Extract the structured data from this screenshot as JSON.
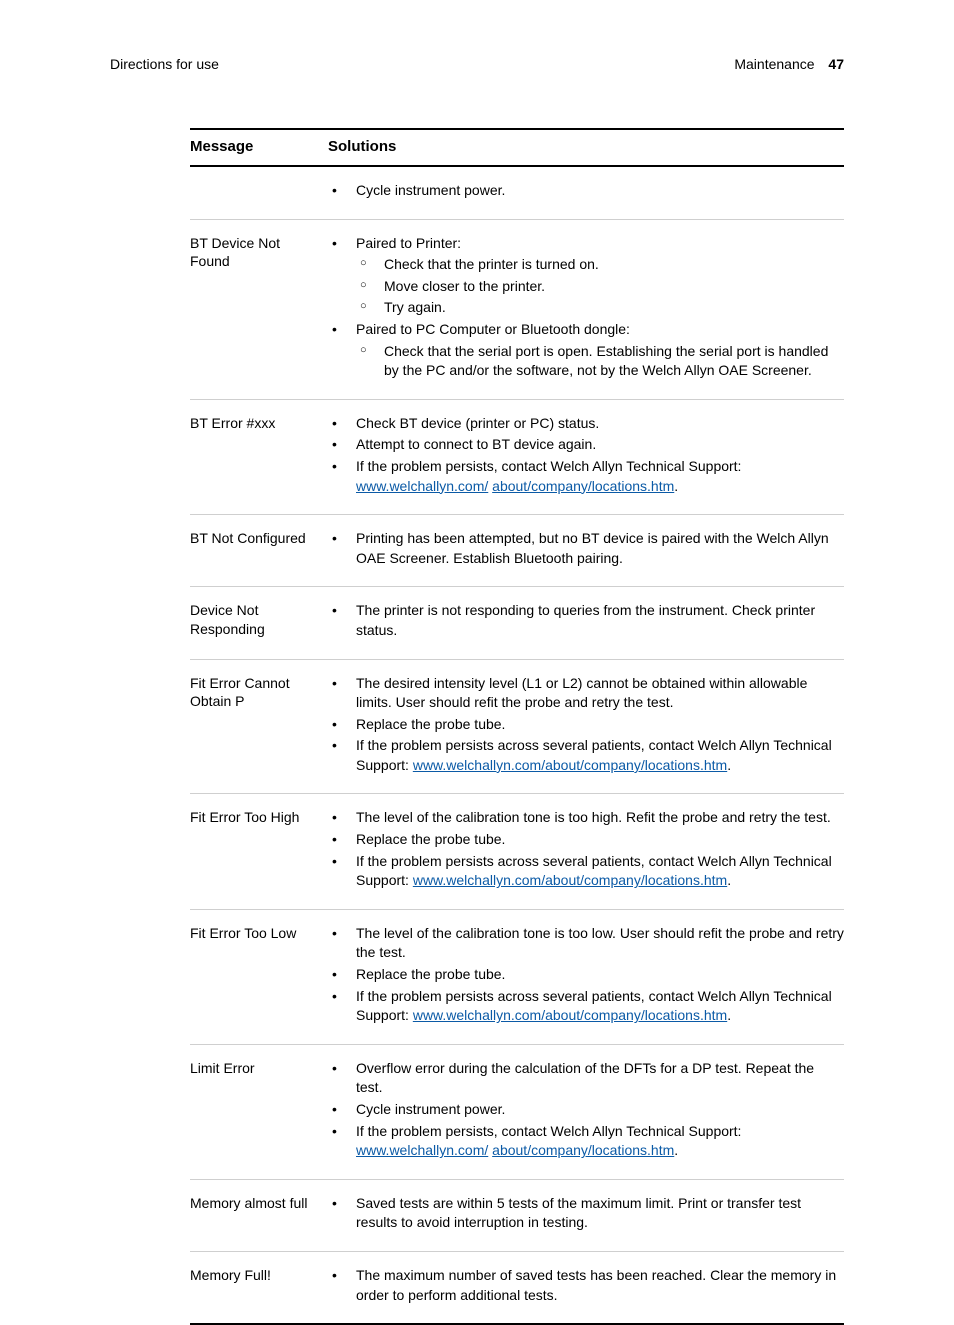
{
  "page": {
    "running_header_left": "Directions for use",
    "running_header_right_section": "Maintenance",
    "running_header_page_number": "47"
  },
  "table": {
    "headers": {
      "message": "Message",
      "solutions": "Solutions"
    },
    "link_url": "www.welchallyn.com/about/company/locations.htm",
    "link_url_split_a": "www.welchallyn.com/",
    "link_url_split_b": "about/company/locations.htm",
    "rows": [
      {
        "message": "",
        "items": [
          {
            "text": "Cycle instrument power."
          }
        ]
      },
      {
        "message": "BT Device Not Found",
        "items": [
          {
            "text": "Paired to Printer:",
            "sub": [
              "Check that the printer is turned on.",
              "Move closer to the printer.",
              "Try again."
            ]
          },
          {
            "text": "Paired to PC Computer or Bluetooth dongle:",
            "sub": [
              "Check that the serial port is open. Establishing the serial port is handled by the PC and/or the software, not by the Welch Allyn OAE Screener."
            ]
          }
        ]
      },
      {
        "message": "BT Error #xxx",
        "items": [
          {
            "text": "Check BT device (printer or PC) status."
          },
          {
            "text": "Attempt to connect to BT device again."
          },
          {
            "text_prefix": "If the problem persists, contact Welch Allyn Technical Support: ",
            "link_split": true
          }
        ]
      },
      {
        "message": "BT Not Configured",
        "items": [
          {
            "text": "Printing has been attempted, but no BT device is paired with the Welch Allyn OAE Screener. Establish Bluetooth pairing."
          }
        ]
      },
      {
        "message": "Device Not Responding",
        "items": [
          {
            "text": "The printer is not responding to queries from the instrument. Check printer status."
          }
        ]
      },
      {
        "message": "Fit Error Cannot Obtain P",
        "items": [
          {
            "text": "The desired intensity level (L1 or L2) cannot be obtained within allowable limits. User should refit the probe and retry the test."
          },
          {
            "text": "Replace the probe tube."
          },
          {
            "text_prefix": "If the problem persists across several patients, contact Welch Allyn Technical Support: ",
            "link_inline": true
          }
        ]
      },
      {
        "message": "Fit Error Too High",
        "items": [
          {
            "text": "The level of the calibration tone is too high. Refit the probe and retry the test."
          },
          {
            "text": "Replace the probe tube."
          },
          {
            "text_prefix": "If the problem persists across several patients, contact Welch Allyn Technical Support: ",
            "link_inline": true
          }
        ]
      },
      {
        "message": "Fit Error Too Low",
        "items": [
          {
            "text": "The level of the calibration tone is too low. User should refit the probe and retry the test."
          },
          {
            "text": "Replace the probe tube."
          },
          {
            "text_prefix": "If the problem persists across several patients, contact Welch Allyn Technical Support: ",
            "link_inline": true
          }
        ]
      },
      {
        "message": "Limit Error",
        "items": [
          {
            "text": "Overflow error during the calculation of the DFTs for a DP test. Repeat the test."
          },
          {
            "text": "Cycle instrument power."
          },
          {
            "text_prefix": "If the problem persists, contact Welch Allyn Technical Support: ",
            "link_split": true
          }
        ]
      },
      {
        "message": "Memory almost full",
        "items": [
          {
            "text": "Saved tests are within 5 tests of the maximum limit. Print or transfer test results to avoid interruption in testing."
          }
        ]
      },
      {
        "message": "Memory Full!",
        "items": [
          {
            "text": "The maximum number of saved tests has been reached. Clear the memory in order to perform additional tests."
          }
        ]
      }
    ]
  }
}
